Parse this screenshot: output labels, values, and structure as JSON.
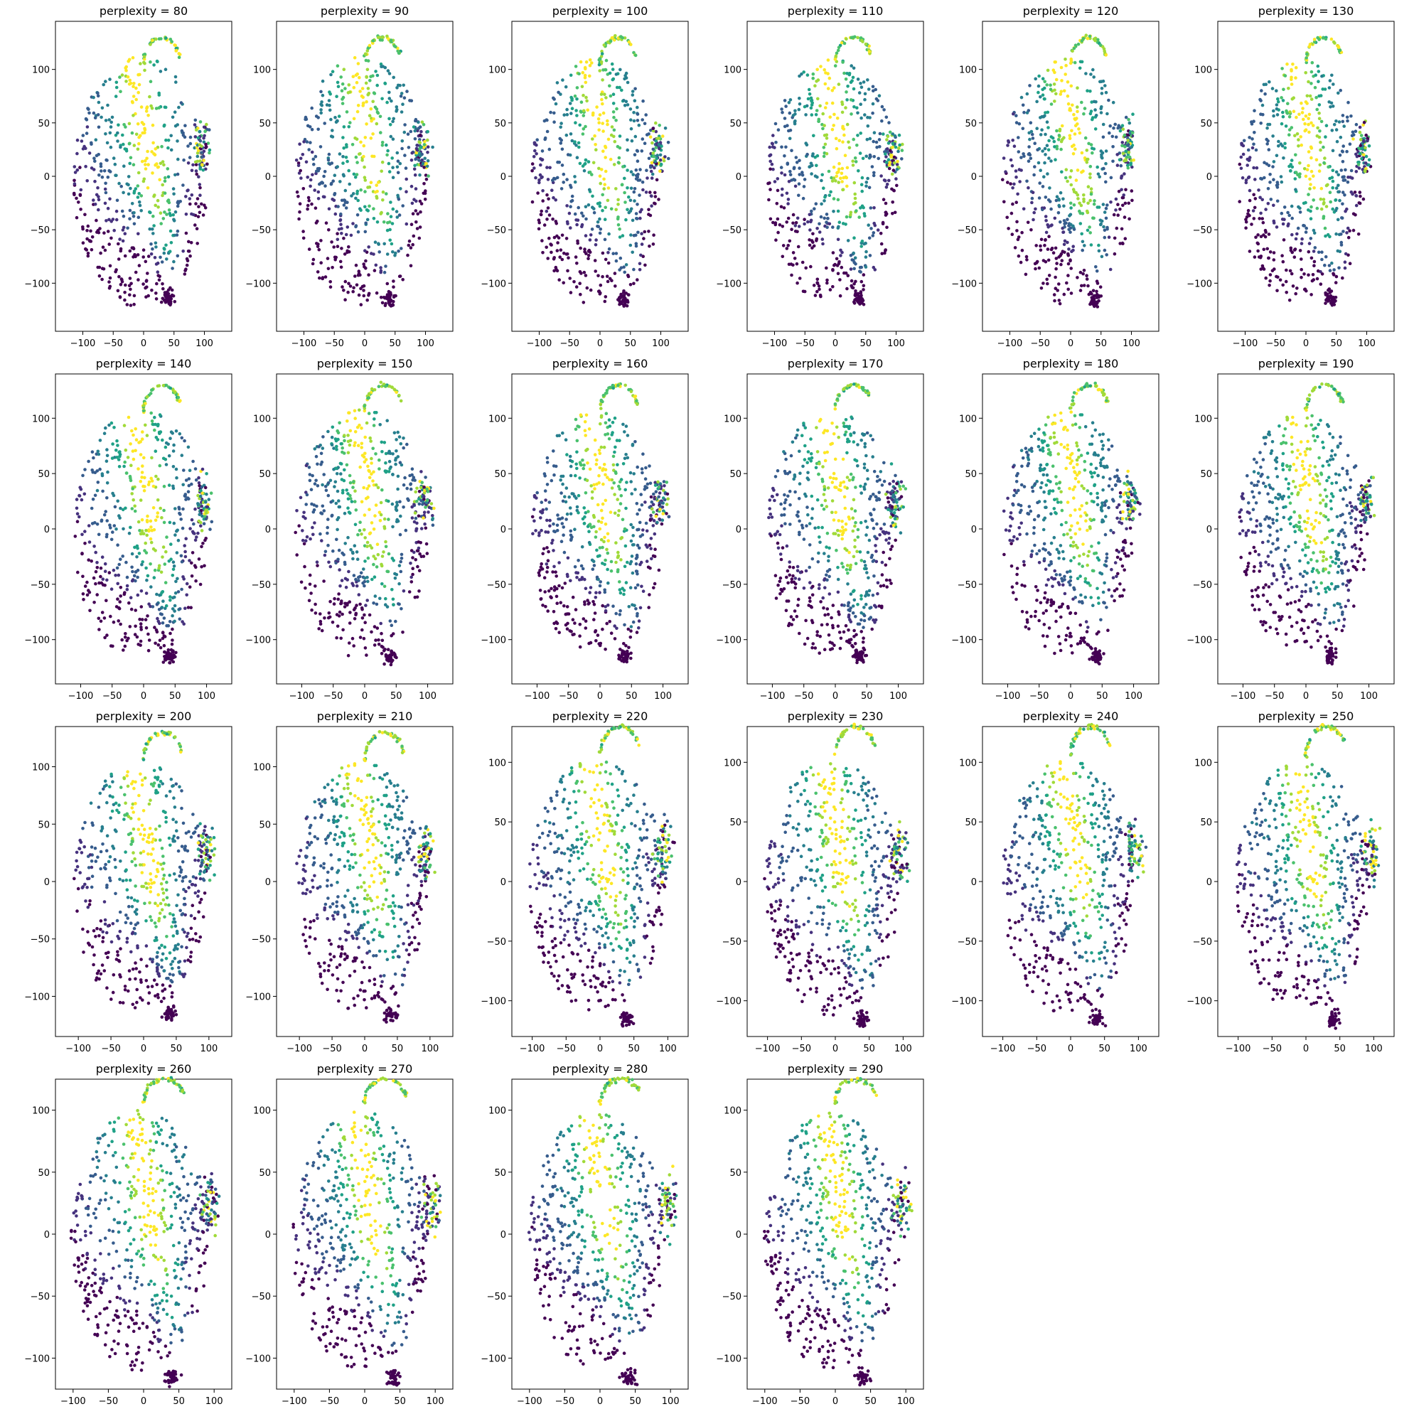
{
  "colormap": [
    "#440154",
    "#46327e",
    "#365c8d",
    "#277f8e",
    "#1fa187",
    "#4ac16d",
    "#a0da39",
    "#fde725"
  ],
  "chart_data": [
    {
      "type": "scatter",
      "title": "perplexity = 80",
      "xlim": [
        -145,
        145
      ],
      "ylim": [
        -145,
        145
      ],
      "xticks": [
        -100,
        -50,
        0,
        50,
        100
      ],
      "yticks": [
        -100,
        -50,
        0,
        50,
        100
      ]
    },
    {
      "type": "scatter",
      "title": "perplexity = 90",
      "xlim": [
        -145,
        145
      ],
      "ylim": [
        -145,
        145
      ],
      "xticks": [
        -100,
        -50,
        0,
        50,
        100
      ],
      "yticks": [
        -100,
        -50,
        0,
        50,
        100
      ]
    },
    {
      "type": "scatter",
      "title": "perplexity = 100",
      "xlim": [
        -145,
        145
      ],
      "ylim": [
        -145,
        145
      ],
      "xticks": [
        -100,
        -50,
        0,
        50,
        100
      ],
      "yticks": [
        -100,
        -50,
        0,
        50,
        100
      ]
    },
    {
      "type": "scatter",
      "title": "perplexity = 110",
      "xlim": [
        -145,
        145
      ],
      "ylim": [
        -145,
        145
      ],
      "xticks": [
        -100,
        -50,
        0,
        50,
        100
      ],
      "yticks": [
        -100,
        -50,
        0,
        50,
        100
      ]
    },
    {
      "type": "scatter",
      "title": "perplexity = 120",
      "xlim": [
        -145,
        145
      ],
      "ylim": [
        -145,
        145
      ],
      "xticks": [
        -100,
        -50,
        0,
        50,
        100
      ],
      "yticks": [
        -100,
        -50,
        0,
        50,
        100
      ]
    },
    {
      "type": "scatter",
      "title": "perplexity = 130",
      "xlim": [
        -145,
        145
      ],
      "ylim": [
        -145,
        145
      ],
      "xticks": [
        -100,
        -50,
        0,
        50,
        100
      ],
      "yticks": [
        -100,
        -50,
        0,
        50,
        100
      ]
    },
    {
      "type": "scatter",
      "title": "perplexity = 140",
      "xlim": [
        -140,
        140
      ],
      "ylim": [
        -140,
        140
      ],
      "xticks": [
        -100,
        -50,
        0,
        50,
        100
      ],
      "yticks": [
        -100,
        -50,
        0,
        50,
        100
      ]
    },
    {
      "type": "scatter",
      "title": "perplexity = 150",
      "xlim": [
        -140,
        140
      ],
      "ylim": [
        -140,
        140
      ],
      "xticks": [
        -100,
        -50,
        0,
        50,
        100
      ],
      "yticks": [
        -100,
        -50,
        0,
        50,
        100
      ]
    },
    {
      "type": "scatter",
      "title": "perplexity = 160",
      "xlim": [
        -140,
        140
      ],
      "ylim": [
        -140,
        140
      ],
      "xticks": [
        -100,
        -50,
        0,
        50,
        100
      ],
      "yticks": [
        -100,
        -50,
        0,
        50,
        100
      ]
    },
    {
      "type": "scatter",
      "title": "perplexity = 170",
      "xlim": [
        -140,
        140
      ],
      "ylim": [
        -140,
        140
      ],
      "xticks": [
        -100,
        -50,
        0,
        50,
        100
      ],
      "yticks": [
        -100,
        -50,
        0,
        50,
        100
      ]
    },
    {
      "type": "scatter",
      "title": "perplexity = 180",
      "xlim": [
        -140,
        140
      ],
      "ylim": [
        -140,
        140
      ],
      "xticks": [
        -100,
        -50,
        0,
        50,
        100
      ],
      "yticks": [
        -100,
        -50,
        0,
        50,
        100
      ]
    },
    {
      "type": "scatter",
      "title": "perplexity = 190",
      "xlim": [
        -140,
        140
      ],
      "ylim": [
        -140,
        140
      ],
      "xticks": [
        -100,
        -50,
        0,
        50,
        100
      ],
      "yticks": [
        -100,
        -50,
        0,
        50,
        100
      ]
    },
    {
      "type": "scatter",
      "title": "perplexity = 200",
      "xlim": [
        -135,
        135
      ],
      "ylim": [
        -135,
        135
      ],
      "xticks": [
        -100,
        -50,
        0,
        50,
        100
      ],
      "yticks": [
        -100,
        -50,
        0,
        50,
        100
      ]
    },
    {
      "type": "scatter",
      "title": "perplexity = 210",
      "xlim": [
        -135,
        135
      ],
      "ylim": [
        -135,
        135
      ],
      "xticks": [
        -100,
        -50,
        0,
        50,
        100
      ],
      "yticks": [
        -100,
        -50,
        0,
        50,
        100
      ]
    },
    {
      "type": "scatter",
      "title": "perplexity = 220",
      "xlim": [
        -130,
        130
      ],
      "ylim": [
        -130,
        130
      ],
      "xticks": [
        -100,
        -50,
        0,
        50,
        100
      ],
      "yticks": [
        -100,
        -50,
        0,
        50,
        100
      ]
    },
    {
      "type": "scatter",
      "title": "perplexity = 230",
      "xlim": [
        -130,
        130
      ],
      "ylim": [
        -130,
        130
      ],
      "xticks": [
        -100,
        -50,
        0,
        50,
        100
      ],
      "yticks": [
        -100,
        -50,
        0,
        50,
        100
      ]
    },
    {
      "type": "scatter",
      "title": "perplexity = 240",
      "xlim": [
        -130,
        130
      ],
      "ylim": [
        -130,
        130
      ],
      "xticks": [
        -100,
        -50,
        0,
        50,
        100
      ],
      "yticks": [
        -100,
        -50,
        0,
        50,
        100
      ]
    },
    {
      "type": "scatter",
      "title": "perplexity = 250",
      "xlim": [
        -130,
        130
      ],
      "ylim": [
        -130,
        130
      ],
      "xticks": [
        -100,
        -50,
        0,
        50,
        100
      ],
      "yticks": [
        -100,
        -50,
        0,
        50,
        100
      ]
    },
    {
      "type": "scatter",
      "title": "perplexity = 260",
      "xlim": [
        -125,
        125
      ],
      "ylim": [
        -125,
        125
      ],
      "xticks": [
        -100,
        -50,
        0,
        50,
        100
      ],
      "yticks": [
        -100,
        -50,
        0,
        50,
        100
      ]
    },
    {
      "type": "scatter",
      "title": "perplexity = 270",
      "xlim": [
        -125,
        125
      ],
      "ylim": [
        -125,
        125
      ],
      "xticks": [
        -100,
        -50,
        0,
        50,
        100
      ],
      "yticks": [
        -100,
        -50,
        0,
        50,
        100
      ]
    },
    {
      "type": "scatter",
      "title": "perplexity = 280",
      "xlim": [
        -125,
        125
      ],
      "ylim": [
        -125,
        125
      ],
      "xticks": [
        -100,
        -50,
        0,
        50,
        100
      ],
      "yticks": [
        -100,
        -50,
        0,
        50,
        100
      ]
    },
    {
      "type": "scatter",
      "title": "perplexity = 290",
      "xlim": [
        -125,
        125
      ],
      "ylim": [
        -125,
        125
      ],
      "xticks": [
        -100,
        -50,
        0,
        50,
        100
      ],
      "yticks": [
        -100,
        -50,
        0,
        50,
        100
      ]
    }
  ]
}
